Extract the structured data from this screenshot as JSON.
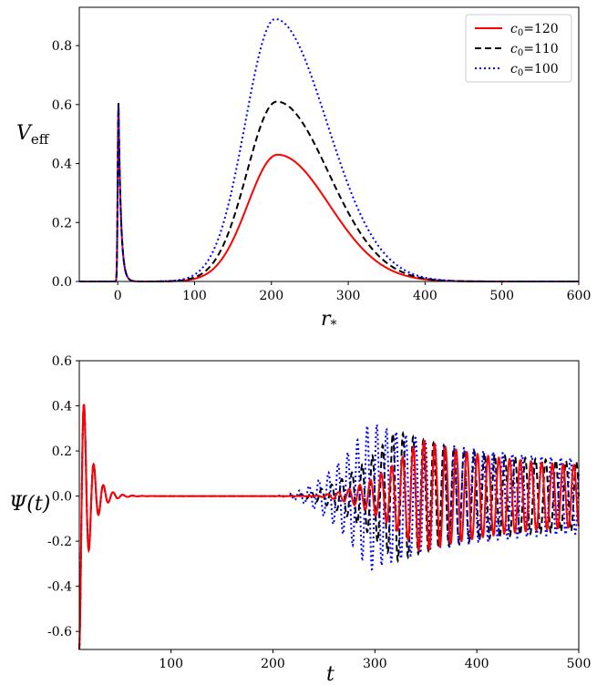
{
  "chart_data": [
    {
      "type": "line",
      "title": "",
      "xlabel": "r*",
      "ylabel": "Veff",
      "xlim": [
        -50,
        600
      ],
      "ylim": [
        0,
        0.93
      ],
      "xticks": [
        0,
        100,
        200,
        300,
        400,
        500,
        600
      ],
      "yticks": [
        0.0,
        0.2,
        0.4,
        0.6,
        0.8
      ],
      "grid": false,
      "legend_position": "top-right",
      "series": [
        {
          "name": "c0=120",
          "legend_lhs": "c",
          "legend_sub": "0",
          "legend_rhs": "=120",
          "color": "#ff0000",
          "style": "solid",
          "peak_x": 208,
          "peak_y": 0.43,
          "spike_x": 1,
          "spike_y": 0.605
        },
        {
          "name": "c0=110",
          "legend_lhs": "c",
          "legend_sub": "0",
          "legend_rhs": "=110",
          "color": "#000000",
          "style": "dashed",
          "peak_x": 207,
          "peak_y": 0.61,
          "spike_x": 1,
          "spike_y": 0.605
        },
        {
          "name": "c0=100",
          "legend_lhs": "c",
          "legend_sub": "0",
          "legend_rhs": "=100",
          "color": "#0000ff",
          "style": "dotted",
          "peak_x": 205,
          "peak_y": 0.89,
          "spike_x": 1,
          "spike_y": 0.605
        }
      ]
    },
    {
      "type": "line",
      "title": "",
      "xlabel": "t",
      "ylabel": "Ψ(t)",
      "xlim": [
        10,
        500
      ],
      "ylim": [
        -0.68,
        0.6
      ],
      "xticks": [
        100,
        200,
        300,
        400,
        500
      ],
      "yticks": [
        -0.6,
        -0.4,
        -0.2,
        0.0,
        0.2,
        0.4,
        0.6
      ],
      "grid": false,
      "series": [
        {
          "name": "c0=120",
          "color": "#ff0000",
          "style": "solid",
          "echo_start": 230,
          "echo_peak": 345,
          "amplitude": 0.25,
          "period": 10.5
        },
        {
          "name": "c0=110",
          "color": "#000000",
          "style": "dashed",
          "echo_start": 205,
          "echo_peak": 320,
          "amplitude": 0.29,
          "period": 10.0
        },
        {
          "name": "c0=100",
          "color": "#0000ff",
          "style": "dotted",
          "echo_start": 195,
          "echo_peak": 295,
          "amplitude": 0.33,
          "period": 9.5
        }
      ]
    }
  ]
}
